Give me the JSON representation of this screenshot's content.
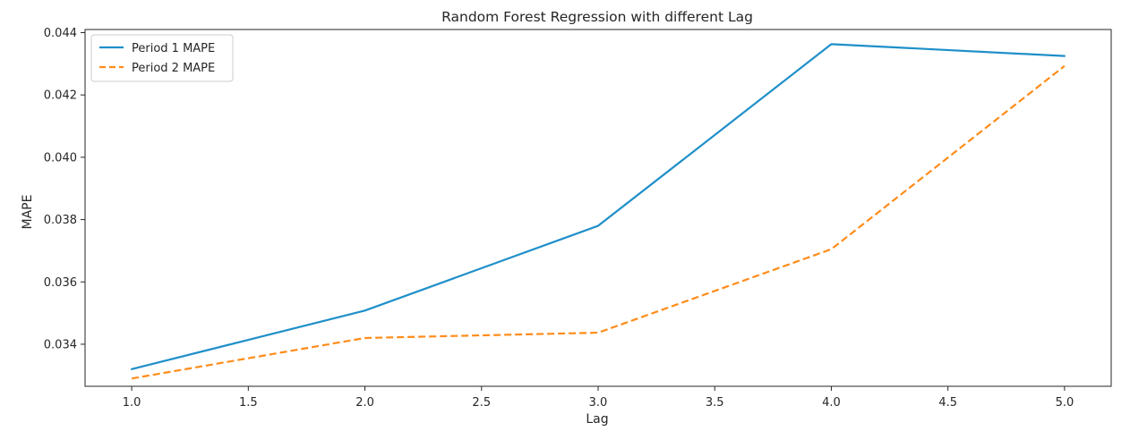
{
  "chart_data": {
    "type": "line",
    "title": "Random Forest Regression with different Lag",
    "xlabel": "Lag",
    "ylabel": "MAPE",
    "x": [
      1.0,
      2.0,
      3.0,
      4.0,
      5.0
    ],
    "xlim": [
      0.8,
      5.2
    ],
    "ylim": [
      0.03265,
      0.0441
    ],
    "xticks": [
      1.0,
      1.5,
      2.0,
      2.5,
      3.0,
      3.5,
      4.0,
      4.5,
      5.0
    ],
    "xtick_labels": [
      "1.0",
      "1.5",
      "2.0",
      "2.5",
      "3.0",
      "3.5",
      "4.0",
      "4.5",
      "5.0"
    ],
    "yticks": [
      0.034,
      0.036,
      0.038,
      0.04,
      0.042,
      0.044
    ],
    "ytick_labels": [
      "0.034",
      "0.036",
      "0.038",
      "0.040",
      "0.042",
      "0.044"
    ],
    "grid": false,
    "legend_position": "top-left",
    "series": [
      {
        "name": "Period 1 MAPE",
        "values": [
          0.0332,
          0.03508,
          0.0378,
          0.04363,
          0.04325
        ],
        "color": "#1f8fc9",
        "style": "solid"
      },
      {
        "name": "Period 2 MAPE",
        "values": [
          0.0329,
          0.0342,
          0.03437,
          0.03705,
          0.04293
        ],
        "color": "#ff8c1a",
        "style": "dashed"
      }
    ]
  }
}
